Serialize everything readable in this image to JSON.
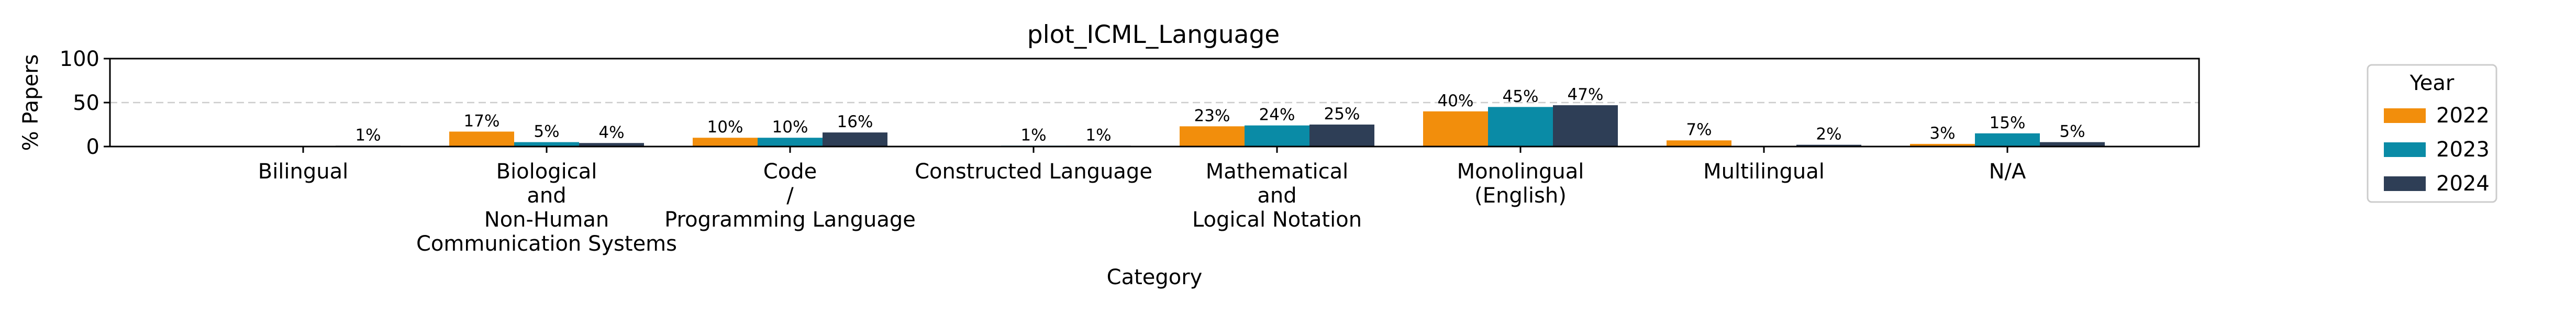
{
  "chart_data": {
    "type": "bar",
    "title": "plot_ICML_Language",
    "xlabel": "Category",
    "ylabel": "% Papers",
    "ylim": [
      0,
      100
    ],
    "yticks": [
      "0",
      "50",
      "100"
    ],
    "grid": "y-dashed",
    "categories": [
      "Bilingual",
      "Biological\nand\nNon-Human\nCommunication Systems",
      "Code\n/\nProgramming Language",
      "Constructed Language",
      "Mathematical\nand\nLogical Notation",
      "Monolingual\n(English)",
      "Multilingual",
      "N/A"
    ],
    "series": [
      {
        "name": "2022",
        "color": "#f28e0c",
        "values": [
          0,
          17,
          10,
          0,
          23,
          40,
          7,
          3
        ],
        "labels": [
          "",
          "17%",
          "10%",
          "",
          "23%",
          "40%",
          "7%",
          "3%"
        ]
      },
      {
        "name": "2023",
        "color": "#0a8ba6",
        "values": [
          0,
          5,
          10,
          1,
          24,
          45,
          0,
          15
        ],
        "labels": [
          "",
          "5%",
          "10%",
          "1%",
          "24%",
          "45%",
          "",
          "15%"
        ]
      },
      {
        "name": "2024",
        "color": "#2e3e56",
        "values": [
          1,
          4,
          16,
          1,
          25,
          47,
          2,
          5
        ],
        "labels": [
          "1%",
          "4%",
          "16%",
          "1%",
          "25%",
          "47%",
          "2%",
          "5%"
        ]
      }
    ],
    "legend": {
      "title": "Year",
      "position": "right"
    }
  }
}
